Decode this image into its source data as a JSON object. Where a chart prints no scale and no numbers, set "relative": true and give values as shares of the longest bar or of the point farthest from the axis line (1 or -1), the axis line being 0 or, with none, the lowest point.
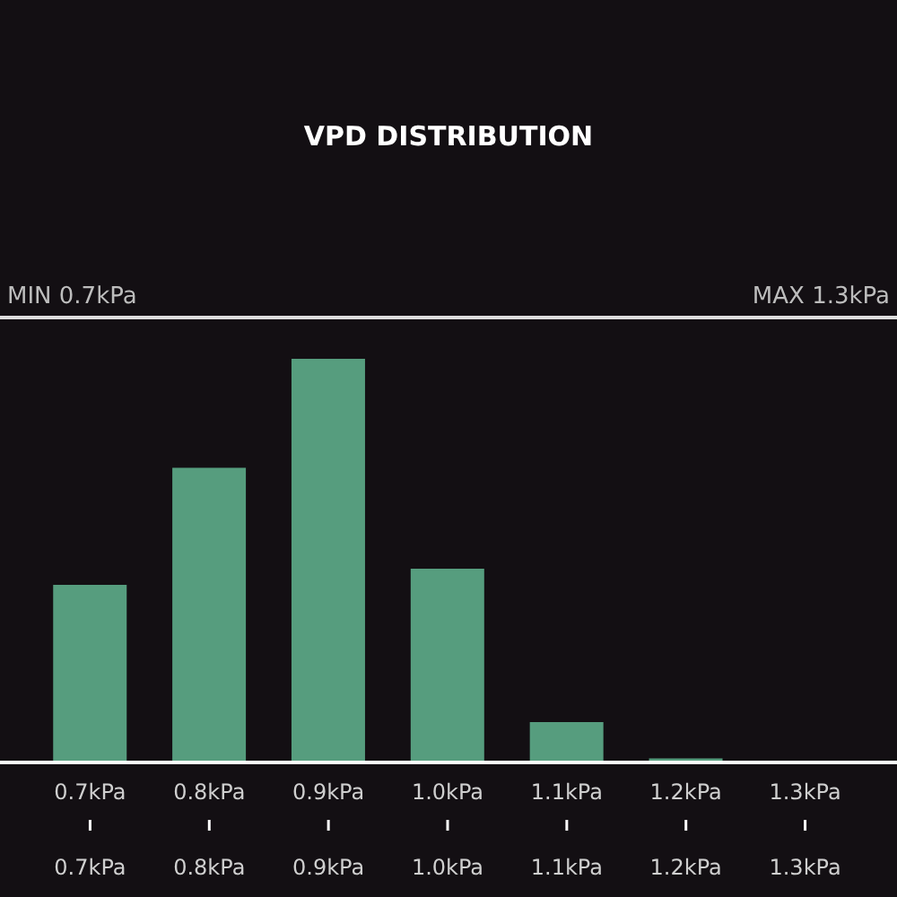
{
  "chart_data": {
    "type": "bar",
    "title": "VPD DISTRIBUTION",
    "annotations": [
      "MIN 0.7kPa",
      "MAX 1.3kPa"
    ],
    "categories": [
      "0.7kPa",
      "0.8kPa",
      "0.9kPa",
      "1.0kPa",
      "1.1kPa",
      "1.2kPa",
      "1.3kPa"
    ],
    "values": [
      0.44,
      0.73,
      1,
      0.48,
      0.1,
      0.01,
      0
    ],
    "color": "#569d7e",
    "relative": true
  }
}
